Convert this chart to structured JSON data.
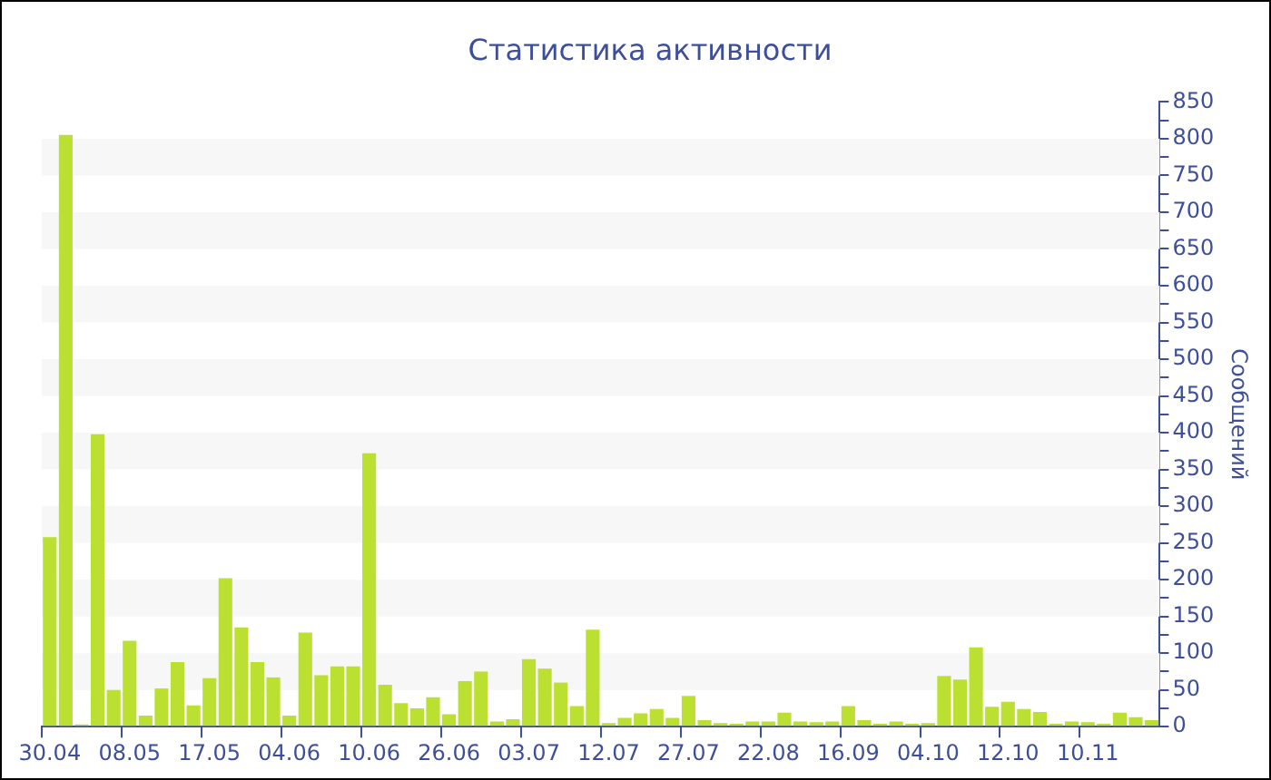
{
  "chart_data": {
    "type": "bar",
    "title": "Статистика активности",
    "ylabel": "Сообщений",
    "color": "#bce031",
    "categories": [
      "30.04",
      null,
      null,
      null,
      null,
      "08.05",
      null,
      null,
      null,
      null,
      "17.05",
      null,
      null,
      null,
      null,
      "04.06",
      null,
      null,
      null,
      null,
      "10.06",
      null,
      null,
      null,
      null,
      "26.06",
      null,
      null,
      null,
      null,
      "03.07",
      null,
      null,
      null,
      null,
      "12.07",
      null,
      null,
      null,
      null,
      "27.07",
      null,
      null,
      null,
      null,
      "22.08",
      null,
      null,
      null,
      null,
      "16.09",
      null,
      null,
      null,
      null,
      "04.10",
      null,
      null,
      null,
      null,
      "12.10",
      null,
      null,
      null,
      null,
      "10.11",
      null,
      null,
      null,
      null
    ],
    "values": [
      258,
      805,
      3,
      398,
      50,
      117,
      15,
      52,
      88,
      29,
      66,
      202,
      135,
      88,
      67,
      15,
      128,
      70,
      82,
      82,
      372,
      57,
      32,
      25,
      40,
      17,
      62,
      75,
      7,
      10,
      92,
      79,
      60,
      28,
      132,
      5,
      12,
      18,
      24,
      12,
      42,
      9,
      5,
      4,
      7,
      7,
      19,
      7,
      6,
      7,
      28,
      9,
      4,
      7,
      4,
      5,
      69,
      64,
      108,
      27,
      34,
      24,
      20,
      4,
      7,
      6,
      4,
      19,
      13,
      9
    ],
    "ylim": [
      0,
      850
    ],
    "yticks": [
      0,
      {
        "value": 25,
        "label": null
      },
      50,
      {
        "value": 75,
        "label": null
      },
      100,
      {
        "value": 125,
        "label": null
      },
      150,
      {
        "value": 175,
        "label": null
      },
      200,
      {
        "value": 225,
        "label": null
      },
      250,
      {
        "value": 275,
        "label": null
      },
      300,
      {
        "value": 325,
        "label": null
      },
      350,
      {
        "value": 375,
        "label": null
      },
      400,
      {
        "value": 425,
        "label": null
      },
      450,
      {
        "value": 475,
        "label": null
      },
      500,
      {
        "value": 525,
        "label": null
      },
      550,
      {
        "value": 575,
        "label": null
      },
      600,
      {
        "value": 625,
        "label": null
      },
      650,
      {
        "value": 675,
        "label": null
      },
      700,
      {
        "value": 725,
        "label": null
      },
      750,
      {
        "value": 775,
        "label": null
      },
      800,
      {
        "value": 825,
        "label": null
      },
      850
    ],
    "bands": [
      {
        "axis": "y",
        "from": 50,
        "to": 100,
        "color": "#f7f7f7"
      },
      {
        "axis": "y",
        "from": 150,
        "to": 200,
        "color": "#f7f7f7"
      },
      {
        "axis": "y",
        "from": 250,
        "to": 300,
        "color": "#f7f7f7"
      },
      {
        "axis": "y",
        "from": 350,
        "to": 400,
        "color": "#f7f7f7"
      },
      {
        "axis": "y",
        "from": 450,
        "to": 500,
        "color": "#f7f7f7"
      },
      {
        "axis": "y",
        "from": 550,
        "to": 600,
        "color": "#f7f7f7"
      },
      {
        "axis": "y",
        "from": 650,
        "to": 700,
        "color": "#f7f7f7"
      },
      {
        "axis": "y",
        "from": 750,
        "to": 800,
        "color": "#f7f7f7"
      }
    ],
    "grid": false,
    "legend": false
  }
}
